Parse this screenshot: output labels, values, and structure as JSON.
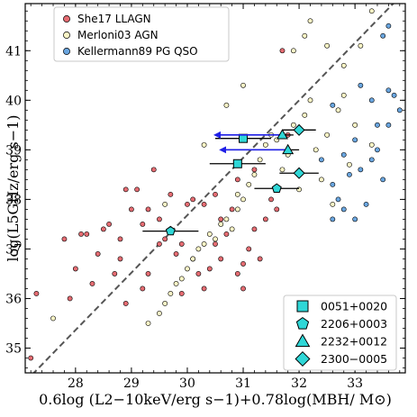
{
  "chart_data": {
    "type": "scatter",
    "xlabel": "0.6log (L2−10keV/erg s−1)+0.78log(MBH/ M⊙)",
    "ylabel": "log(L5GHz/erg s−1)",
    "xlim": [
      27.1,
      33.9
    ],
    "ylim": [
      34.5,
      41.95
    ],
    "xticks": [
      28,
      29,
      30,
      31,
      32,
      33
    ],
    "yticks": [
      35,
      36,
      37,
      38,
      39,
      40,
      41
    ],
    "fit_line": {
      "x": [
        27.1,
        33.9
      ],
      "y": [
        34.32,
        42.2
      ],
      "style": "dashed",
      "color": "#555555"
    },
    "legend_upper": [
      {
        "label": "She17 LLAGN",
        "color": "#e56c72"
      },
      {
        "label": "Merloni03 AGN",
        "color": "#fbf6c6"
      },
      {
        "label": "Kellermann89 PG QSO",
        "color": "#6aa6e0"
      }
    ],
    "legend_lower": [
      {
        "label": "0051+0020",
        "marker": "square"
      },
      {
        "label": "2206+0003",
        "marker": "pentagon"
      },
      {
        "label": "2232+0012",
        "marker": "triangle"
      },
      {
        "label": "2300−0005",
        "marker": "diamond"
      }
    ],
    "colors": {
      "highlight": "#2fd7d7",
      "arrow": "#1f1fe6",
      "grid": "none"
    },
    "series": [
      {
        "name": "She17 LLAGN",
        "color": "#e56c72",
        "points": [
          [
            27.2,
            34.8
          ],
          [
            27.3,
            36.1
          ],
          [
            27.9,
            36.0
          ],
          [
            28.1,
            37.3
          ],
          [
            27.8,
            37.2
          ],
          [
            28.0,
            36.6
          ],
          [
            28.2,
            37.3
          ],
          [
            28.4,
            36.9
          ],
          [
            28.3,
            36.3
          ],
          [
            28.5,
            37.4
          ],
          [
            28.6,
            37.5
          ],
          [
            28.7,
            36.5
          ],
          [
            28.8,
            37.2
          ],
          [
            28.9,
            38.2
          ],
          [
            28.8,
            36.8
          ],
          [
            29.0,
            37.8
          ],
          [
            29.1,
            38.2
          ],
          [
            29.2,
            37.5
          ],
          [
            29.3,
            37.8
          ],
          [
            29.4,
            38.6
          ],
          [
            29.5,
            37.1
          ],
          [
            29.2,
            36.2
          ],
          [
            29.3,
            36.5
          ],
          [
            29.6,
            37.2
          ],
          [
            29.7,
            38.1
          ],
          [
            29.8,
            36.9
          ],
          [
            29.9,
            37.1
          ],
          [
            30.0,
            37.9
          ],
          [
            30.1,
            38.0
          ],
          [
            30.1,
            36.8
          ],
          [
            30.2,
            36.5
          ],
          [
            30.3,
            37.9
          ],
          [
            30.4,
            36.6
          ],
          [
            30.5,
            38.1
          ],
          [
            30.5,
            37.1
          ],
          [
            30.6,
            36.8
          ],
          [
            30.7,
            37.3
          ],
          [
            30.8,
            37.8
          ],
          [
            30.9,
            36.5
          ],
          [
            30.9,
            38.4
          ],
          [
            31.0,
            36.2
          ],
          [
            31.0,
            36.7
          ],
          [
            31.1,
            37.0
          ],
          [
            31.2,
            37.4
          ],
          [
            31.3,
            36.8
          ],
          [
            31.4,
            37.6
          ],
          [
            31.5,
            38.0
          ],
          [
            31.6,
            37.8
          ],
          [
            31.7,
            41.0
          ],
          [
            31.8,
            39.3
          ],
          [
            29.9,
            36.1
          ],
          [
            30.3,
            36.2
          ],
          [
            29.5,
            37.6
          ],
          [
            28.9,
            35.9
          ],
          [
            30.6,
            37.6
          ],
          [
            31.2,
            38.6
          ]
        ]
      },
      {
        "name": "Merloni03 AGN",
        "color": "#fbf6c6",
        "points": [
          [
            27.6,
            35.6
          ],
          [
            29.3,
            35.5
          ],
          [
            29.5,
            35.7
          ],
          [
            29.6,
            35.9
          ],
          [
            29.7,
            36.1
          ],
          [
            29.8,
            36.3
          ],
          [
            29.9,
            36.4
          ],
          [
            30.0,
            36.6
          ],
          [
            30.1,
            36.8
          ],
          [
            30.2,
            37.0
          ],
          [
            30.3,
            37.1
          ],
          [
            30.4,
            37.3
          ],
          [
            30.5,
            37.2
          ],
          [
            30.6,
            37.5
          ],
          [
            30.7,
            37.6
          ],
          [
            30.8,
            37.4
          ],
          [
            30.9,
            37.8
          ],
          [
            31.0,
            38.0
          ],
          [
            31.1,
            38.3
          ],
          [
            31.2,
            38.5
          ],
          [
            31.3,
            38.8
          ],
          [
            31.4,
            39.1
          ],
          [
            31.5,
            39.3
          ],
          [
            31.6,
            39.2
          ],
          [
            31.7,
            38.6
          ],
          [
            31.8,
            38.9
          ],
          [
            31.9,
            39.5
          ],
          [
            32.0,
            38.2
          ],
          [
            32.1,
            39.7
          ],
          [
            32.2,
            40.0
          ],
          [
            32.3,
            39.0
          ],
          [
            32.4,
            38.4
          ],
          [
            32.5,
            39.3
          ],
          [
            32.6,
            37.9
          ],
          [
            32.7,
            39.8
          ],
          [
            32.8,
            40.1
          ],
          [
            32.9,
            38.7
          ],
          [
            33.0,
            39.5
          ],
          [
            32.1,
            41.3
          ],
          [
            31.9,
            41.0
          ],
          [
            32.5,
            41.1
          ],
          [
            33.1,
            41.1
          ],
          [
            32.8,
            40.7
          ],
          [
            32.2,
            41.6
          ],
          [
            33.3,
            39.1
          ],
          [
            31.0,
            40.3
          ],
          [
            30.7,
            39.9
          ],
          [
            30.3,
            39.1
          ],
          [
            29.6,
            37.9
          ],
          [
            30.9,
            38.1
          ],
          [
            33.3,
            41.8
          ]
        ]
      },
      {
        "name": "Kellermann89 PG QSO",
        "color": "#6aa6e0",
        "points": [
          [
            32.4,
            38.8
          ],
          [
            32.6,
            38.3
          ],
          [
            32.7,
            38.0
          ],
          [
            32.8,
            37.8
          ],
          [
            32.9,
            38.5
          ],
          [
            33.0,
            39.2
          ],
          [
            33.1,
            38.6
          ],
          [
            33.2,
            37.9
          ],
          [
            33.3,
            38.8
          ],
          [
            33.4,
            39.0
          ],
          [
            33.5,
            38.4
          ],
          [
            33.6,
            39.5
          ],
          [
            33.7,
            40.1
          ],
          [
            33.8,
            39.8
          ],
          [
            33.0,
            37.6
          ],
          [
            32.6,
            37.6
          ],
          [
            33.3,
            40.0
          ],
          [
            33.5,
            41.3
          ],
          [
            33.6,
            41.5
          ],
          [
            32.6,
            39.9
          ],
          [
            33.1,
            40.3
          ],
          [
            33.4,
            39.5
          ],
          [
            33.6,
            40.2
          ],
          [
            32.8,
            38.9
          ]
        ]
      }
    ],
    "highlighted_sources": [
      {
        "name": "0051+0020",
        "marker": "square",
        "points": [
          [
            31.0,
            39.23
          ],
          [
            30.9,
            38.72
          ]
        ],
        "xerr": [
          [
            0.5,
            0.5
          ],
          [
            0.5,
            0.5
          ]
        ]
      },
      {
        "name": "2206+0003",
        "marker": "pentagon",
        "points": [
          [
            29.7,
            37.36
          ],
          [
            31.6,
            38.22
          ]
        ],
        "xerr": [
          [
            0.5,
            0.5
          ],
          [
            0.4,
            0.4
          ]
        ]
      },
      {
        "name": "2232+0012",
        "marker": "triangle",
        "points": [
          [
            31.7,
            39.3
          ],
          [
            31.8,
            39.0
          ]
        ],
        "xerr": [
          [
            0.2,
            0.2
          ],
          [
            0.2,
            0.2
          ]
        ],
        "arrow_dx": -1.2
      },
      {
        "name": "2300−0005",
        "marker": "diamond",
        "points": [
          [
            32.0,
            39.4
          ],
          [
            32.0,
            38.53
          ]
        ],
        "xerr": [
          [
            0.3,
            0.3
          ],
          [
            0.35,
            0.35
          ]
        ]
      }
    ]
  }
}
